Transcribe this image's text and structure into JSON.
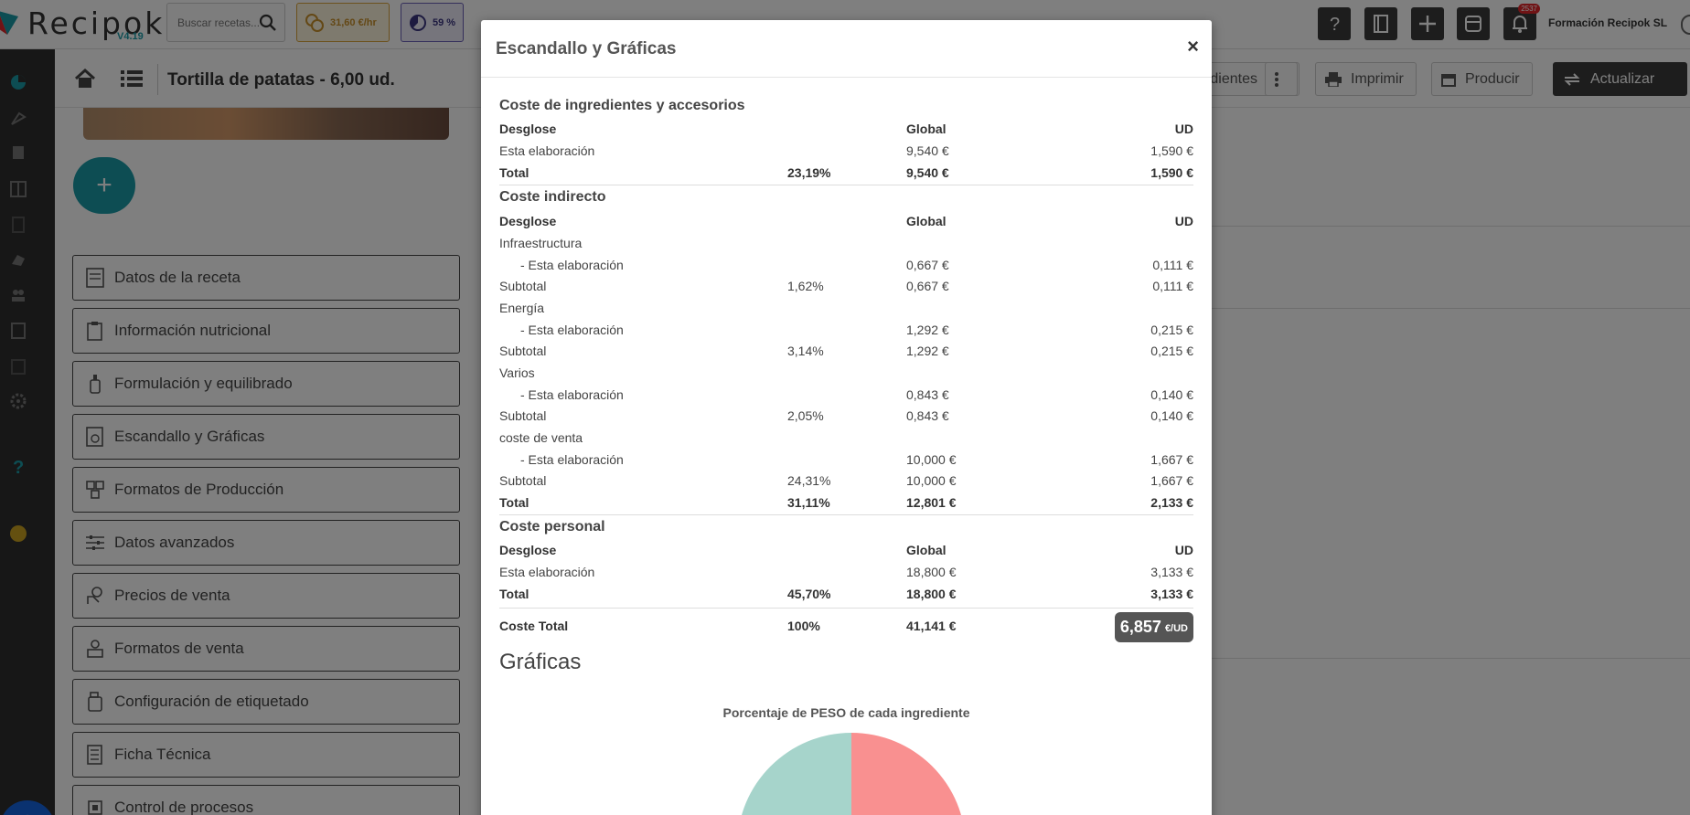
{
  "app": {
    "logo_text": "Recipok",
    "version": "V4.19",
    "search_placeholder": "Buscar recetas...",
    "cost_chip": "31,60 €/hr",
    "pct_chip": "59 %",
    "notification_count": "2537",
    "company": "Formación Recipok SL"
  },
  "subheader": {
    "title": "Tortilla de patatas - 6,00 ud.",
    "ingredients_btn": "dientes",
    "print_btn": "Imprimir",
    "produce_btn": "Producir",
    "update_btn": "Actualizar"
  },
  "left_menu": {
    "items": [
      {
        "label": "Datos de la receta",
        "icon": "document-icon"
      },
      {
        "label": "Información nutricional",
        "icon": "clipboard-icon"
      },
      {
        "label": "Formulación y equilibrado",
        "icon": "bottle-icon"
      },
      {
        "label": "Escandallo y Gráficas",
        "icon": "chart-doc-icon"
      },
      {
        "label": "Formatos de Producción",
        "icon": "boxes-icon"
      },
      {
        "label": "Datos avanzados",
        "icon": "sliders-icon"
      },
      {
        "label": "Precios de venta",
        "icon": "hand-coin-icon"
      },
      {
        "label": "Formatos de venta",
        "icon": "packages-icon"
      },
      {
        "label": "Configuración de etiquetado",
        "icon": "label-icon"
      },
      {
        "label": "Ficha Técnica",
        "icon": "sheet-icon"
      },
      {
        "label": "Control de procesos",
        "icon": "chip-icon"
      }
    ]
  },
  "modal": {
    "title": "Escandallo y Gráficas",
    "close": "×",
    "sections": {
      "ingredients": {
        "title": "Coste de ingredientes y accesorios",
        "header": {
          "desglose": "Desglose",
          "global": "Global",
          "ud": "UD"
        },
        "rows": [
          {
            "label": "Esta elaboración",
            "pct": "",
            "global": "9,540 €",
            "ud": "1,590 €"
          }
        ],
        "total": {
          "label": "Total",
          "pct": "23,19%",
          "global": "9,540 €",
          "ud": "1,590 €"
        }
      },
      "indirect": {
        "title": "Coste indirecto",
        "header": {
          "desglose": "Desglose",
          "global": "Global",
          "ud": "UD"
        },
        "groups": [
          {
            "name": "Infraestructura",
            "line": {
              "label": "- Esta elaboración",
              "global": "0,667 €",
              "ud": "0,111 €"
            },
            "subtotal": {
              "label": "Subtotal",
              "pct": "1,62%",
              "global": "0,667 €",
              "ud": "0,111 €"
            }
          },
          {
            "name": "Energía",
            "line": {
              "label": "- Esta elaboración",
              "global": "1,292 €",
              "ud": "0,215 €"
            },
            "subtotal": {
              "label": "Subtotal",
              "pct": "3,14%",
              "global": "1,292 €",
              "ud": "0,215 €"
            }
          },
          {
            "name": "Varios",
            "line": {
              "label": "- Esta elaboración",
              "global": "0,843 €",
              "ud": "0,140 €"
            },
            "subtotal": {
              "label": "Subtotal",
              "pct": "2,05%",
              "global": "0,843 €",
              "ud": "0,140 €"
            }
          },
          {
            "name": "coste de venta",
            "line": {
              "label": "- Esta elaboración",
              "global": "10,000 €",
              "ud": "1,667 €"
            },
            "subtotal": {
              "label": "Subtotal",
              "pct": "24,31%",
              "global": "10,000 €",
              "ud": "1,667 €"
            }
          }
        ],
        "total": {
          "label": "Total",
          "pct": "31,11%",
          "global": "12,801 €",
          "ud": "2,133 €"
        }
      },
      "personal": {
        "title": "Coste personal",
        "header": {
          "desglose": "Desglose",
          "global": "Global",
          "ud": "UD"
        },
        "rows": [
          {
            "label": "Esta elaboración",
            "pct": "",
            "global": "18,800 €",
            "ud": "3,133 €"
          }
        ],
        "total": {
          "label": "Total",
          "pct": "45,70%",
          "global": "18,800 €",
          "ud": "3,133 €"
        }
      }
    },
    "grand_total": {
      "label": "Coste Total",
      "pct": "100%",
      "global": "41,141 €",
      "ud_value": "6,857",
      "ud_unit": "€/UD"
    },
    "charts_title": "Gráficas",
    "chart": {
      "title": "Porcentaje de PESO de cada ingrediente",
      "colors": [
        "#f99090",
        "#a6d4cb"
      ]
    }
  },
  "colors": {
    "teal": "#1a9aa6",
    "dark": "#3b3b3b",
    "rail": "#2f2f2f",
    "cost_chip": "#d8a33a",
    "pct_chip": "#6b5fb7"
  }
}
